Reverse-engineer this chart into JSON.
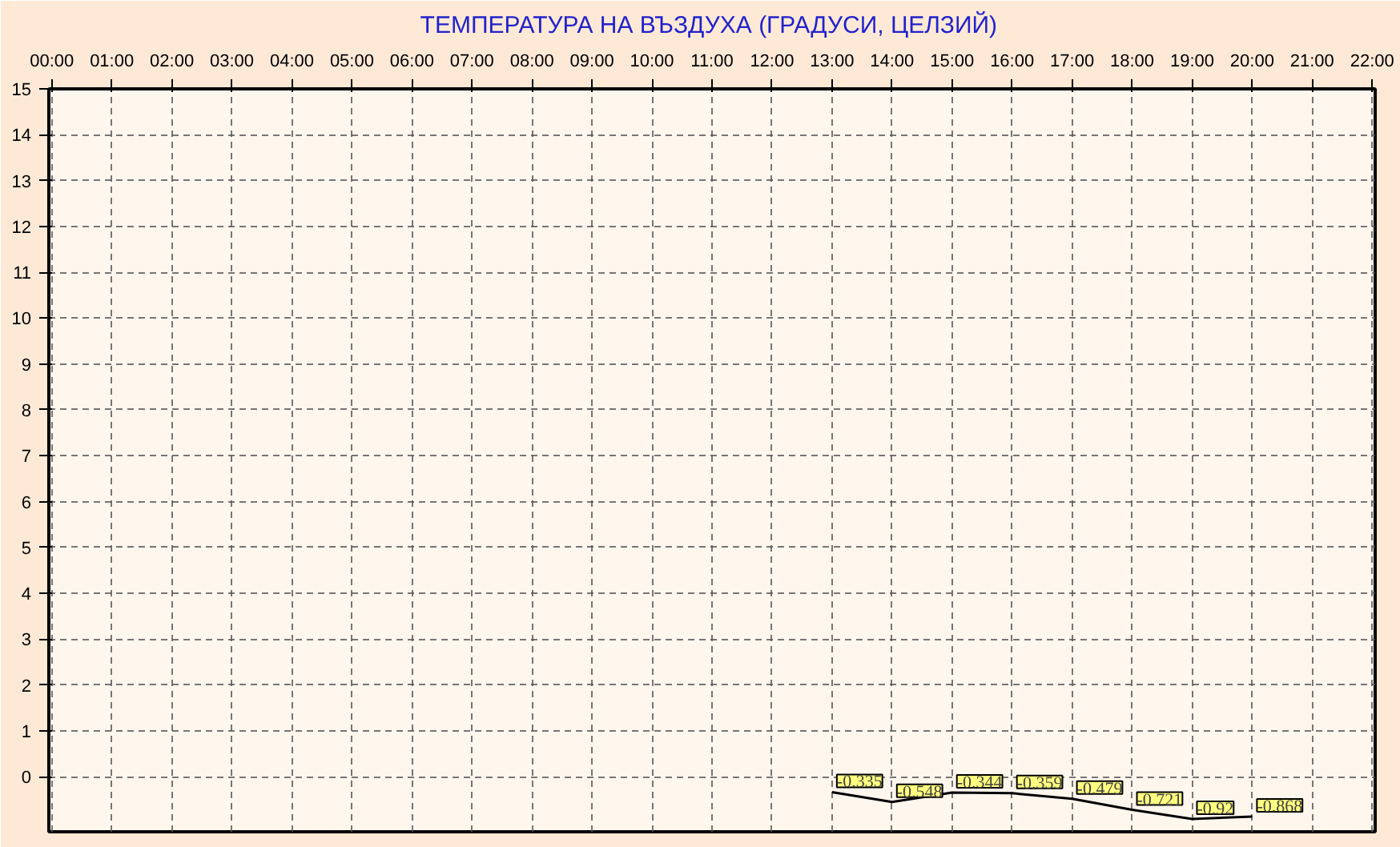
{
  "chart_data": {
    "type": "line",
    "title": "ТЕМПЕРАТУРА НА ВЪЗДУХА  (ГРАДУСИ, ЦЕЛЗИЙ)",
    "categories": [
      "00:00",
      "01:00",
      "02:00",
      "03:00",
      "04:00",
      "05:00",
      "06:00",
      "07:00",
      "08:00",
      "09:00",
      "10:00",
      "11:00",
      "12:00",
      "13:00",
      "14:00",
      "15:00",
      "16:00",
      "17:00",
      "18:00",
      "19:00",
      "20:00",
      "21:00",
      "22:00"
    ],
    "series": [
      {
        "color": "#000000",
        "values": [
          null,
          null,
          null,
          null,
          null,
          null,
          null,
          null,
          null,
          null,
          null,
          null,
          null,
          -0.335,
          -0.548,
          -0.344,
          -0.359,
          -0.479,
          -0.721,
          -0.92,
          -0.868,
          null,
          null
        ]
      }
    ],
    "ylim": [
      -1.2,
      15
    ],
    "yticks": [
      0,
      1,
      2,
      3,
      4,
      5,
      6,
      7,
      8,
      9,
      10,
      11,
      12,
      13,
      14,
      15
    ],
    "grid": true,
    "data_labels": true,
    "line_style": "solid"
  }
}
